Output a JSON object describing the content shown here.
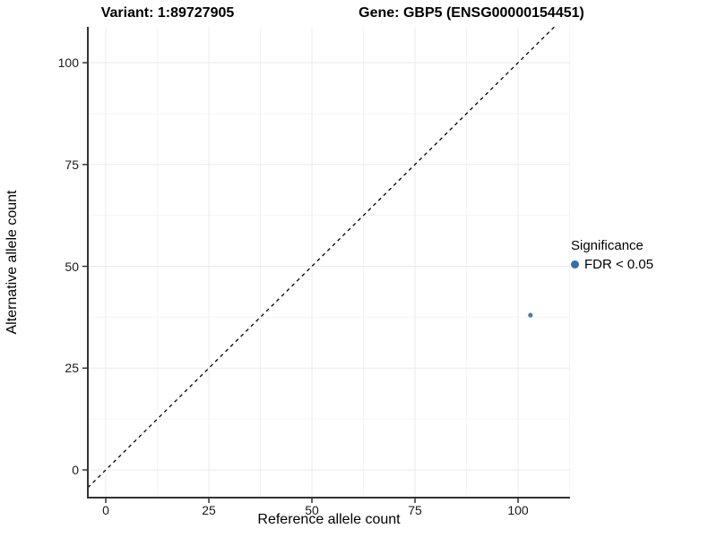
{
  "chart_data": {
    "type": "scatter",
    "title": {
      "left": "Variant: 1:89727905",
      "right": "Gene: GBP5 (ENSG00000154451)"
    },
    "xlabel": "Reference allele count",
    "ylabel": "Alternative allele count",
    "xlim": [
      -4.35,
      112.6
    ],
    "ylim": [
      -6.8,
      108.8
    ],
    "x_ticks": [
      0,
      25,
      50,
      75,
      100
    ],
    "y_ticks": [
      0,
      25,
      50,
      75,
      100
    ],
    "x_minor_ticks": [
      12.5,
      37.5,
      62.5,
      87.5,
      112.5
    ],
    "y_minor_ticks": [
      12.5,
      37.5,
      62.5,
      87.5
    ],
    "grid": true,
    "series": [
      {
        "name": "FDR < 0.05",
        "color": "#336DAD",
        "points": [
          [
            103,
            38
          ]
        ]
      }
    ],
    "reference_line": {
      "slope": 1,
      "intercept": 0,
      "style": "dashed",
      "color": "#000000"
    },
    "legend": {
      "position": "right",
      "title": "Significance"
    },
    "colors": {
      "axis_line": "#333333",
      "tick_mark": "#333333",
      "grid_major": "#ebebeb",
      "grid_minor": "#f5f5f5",
      "point": "#336DAD"
    }
  }
}
